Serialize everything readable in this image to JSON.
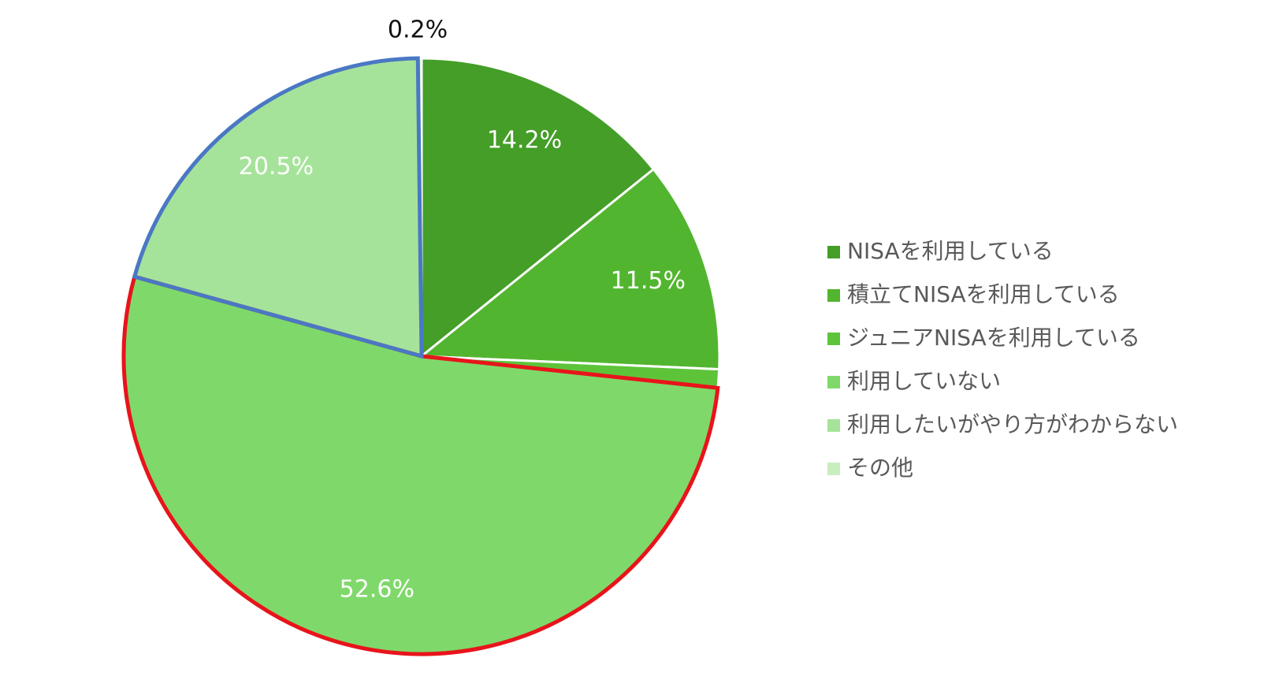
{
  "chart_data": {
    "type": "pie",
    "categories": [
      "NISAを利用している",
      "積立てNISAを利用している",
      "ジュニアNISAを利用している",
      "利用していない",
      "利用したいがやり方がわからない",
      "その他"
    ],
    "values": [
      14.2,
      11.5,
      1.0,
      52.6,
      20.5,
      0.2
    ],
    "value_labels": [
      "14.2%",
      "11.5%",
      null,
      "52.6%",
      "20.5%",
      "0.2%"
    ],
    "colors": [
      "#449e28",
      "#52b52f",
      "#5dc43a",
      "#7fd96a",
      "#a6e39a",
      "#c8eec0"
    ],
    "highlights": [
      {
        "index": 3,
        "color": "#e8141b"
      },
      {
        "index": 4,
        "color": "#4a78c4"
      }
    ],
    "legend": "right"
  }
}
